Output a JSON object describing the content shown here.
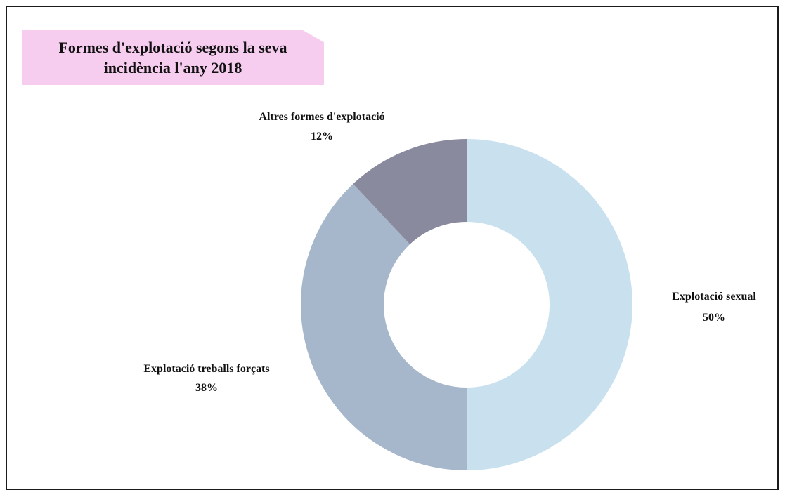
{
  "chart_data": {
    "type": "pie",
    "variant": "donut",
    "title": "Formes d'explotació segons la seva incidència l'any 2018",
    "slices": [
      {
        "label": "Explotació sexual",
        "value": 50,
        "value_label": "50%",
        "color": "#c9e1ef"
      },
      {
        "label": "Explotació treballs forçats",
        "value": 38,
        "value_label": "38%",
        "color": "#a6b6cb"
      },
      {
        "label": "Altres formes d'explotació",
        "value": 12,
        "value_label": "12%",
        "color": "#8a8a9e"
      }
    ],
    "legend": "none",
    "title_background": "#f6cdef"
  }
}
